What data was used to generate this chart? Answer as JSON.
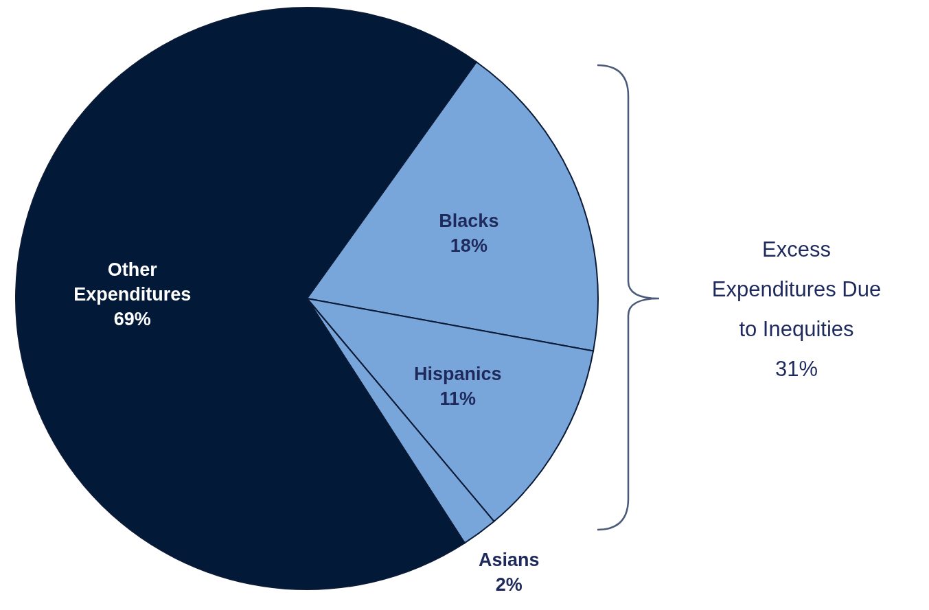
{
  "chart_data": {
    "type": "pie",
    "categories": [
      "Blacks",
      "Hispanics",
      "Asians",
      "Other Expenditures"
    ],
    "values": [
      18,
      11,
      2,
      69
    ],
    "colors": [
      "#79a6da",
      "#79a6da",
      "#79a6da",
      "#021a37"
    ],
    "value_labels": [
      "18%",
      "11%",
      "2%",
      "69%"
    ],
    "annotations": [
      "Excess Expenditures Due to Inequities 31%"
    ]
  }
}
